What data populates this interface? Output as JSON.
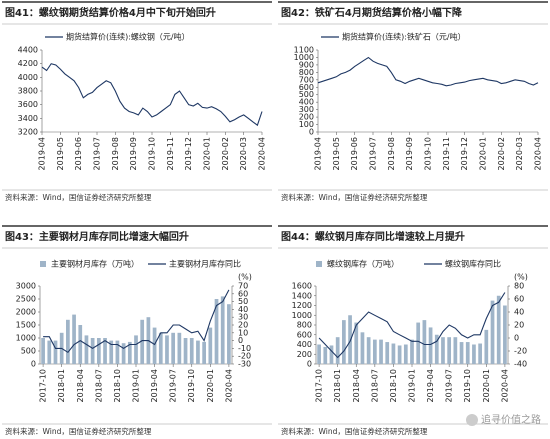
{
  "chart_data": [
    {
      "type": "line",
      "figure_label": "图41：",
      "title": "螺纹钢期货结算价格4月中下旬开始回升",
      "source": "资料来源：Wind，国信证券经济研究所整理",
      "categories": [
        "2019-04",
        null,
        null,
        null,
        "2019-05",
        null,
        null,
        null,
        "2019-06",
        null,
        null,
        null,
        "2019-07",
        null,
        null,
        null,
        "2019-08",
        null,
        null,
        null,
        "2019-09",
        null,
        null,
        null,
        "2019-10",
        null,
        null,
        null,
        "2019-11",
        null,
        null,
        null,
        "2019-12",
        null,
        null,
        null,
        "2020-01",
        null,
        null,
        null,
        "2020-02",
        null,
        null,
        null,
        "2020-03",
        null,
        null,
        null,
        "2020-04"
      ],
      "series": [
        {
          "name": "期货结算价(连续):螺纹钢（元/吨）",
          "color": "#1f3864",
          "values": [
            4150,
            4100,
            4200,
            4180,
            4120,
            4050,
            4000,
            3950,
            3850,
            3700,
            3750,
            3780,
            3850,
            3900,
            3950,
            3920,
            3800,
            3650,
            3550,
            3500,
            3480,
            3450,
            3550,
            3500,
            3420,
            3450,
            3500,
            3550,
            3600,
            3750,
            3800,
            3700,
            3600,
            3580,
            3620,
            3560,
            3550,
            3570,
            3540,
            3500,
            3430,
            3350,
            3380,
            3420,
            3450,
            3400,
            3350,
            3300,
            3500
          ]
        }
      ],
      "ylim": [
        3200,
        4400
      ],
      "yticks": [
        3200,
        3400,
        3600,
        3800,
        4000,
        4200,
        4400
      ]
    },
    {
      "type": "line",
      "figure_label": "图42：",
      "title": "铁矿石4月期货结算价格小幅下降",
      "source": "资料来源：Wind，国信证券经济研究所整理",
      "categories": [
        "2019-04",
        null,
        null,
        null,
        "2019-05",
        null,
        null,
        null,
        "2019-06",
        null,
        null,
        null,
        "2019-07",
        null,
        null,
        null,
        "2019-08",
        null,
        null,
        null,
        "2019-09",
        null,
        null,
        null,
        "2019-10",
        null,
        null,
        null,
        "2019-11",
        null,
        null,
        null,
        "2019-12",
        null,
        null,
        null,
        "2020-01",
        null,
        null,
        null,
        "2020-02",
        null,
        null,
        null,
        "2020-03",
        null,
        null,
        null,
        "2020-04"
      ],
      "series": [
        {
          "name": "期货结算价(连续):铁矿石（元/吨）",
          "color": "#1f3864",
          "values": [
            660,
            680,
            700,
            720,
            740,
            780,
            800,
            830,
            880,
            920,
            960,
            1000,
            950,
            920,
            900,
            880,
            800,
            700,
            680,
            650,
            680,
            700,
            720,
            700,
            680,
            660,
            650,
            640,
            620,
            630,
            650,
            660,
            670,
            690,
            700,
            710,
            720,
            700,
            690,
            680,
            650,
            660,
            680,
            700,
            690,
            680,
            650,
            630,
            660
          ]
        }
      ],
      "ylim": [
        0,
        1100
      ],
      "yticks": [
        0,
        100,
        200,
        300,
        400,
        500,
        600,
        700,
        800,
        900,
        1000,
        1100
      ]
    },
    {
      "type": "bar_line",
      "figure_label": "图43：",
      "title": "主要钢材月库存同比增速大幅回升",
      "source": "资料来源：Wind，国信证券经济研究所整理",
      "categories": [
        "2017-10",
        null,
        null,
        "2018-01",
        null,
        null,
        "2018-04",
        null,
        null,
        "2018-07",
        null,
        null,
        "2018-10",
        null,
        null,
        "2019-01",
        null,
        null,
        "2019-04",
        null,
        null,
        "2019-07",
        null,
        null,
        "2019-10",
        null,
        null,
        "2020-01",
        null,
        null,
        "2020-04"
      ],
      "series": [
        {
          "name": "主要钢材月库存（万吨）",
          "color": "#9fb4c8",
          "type": "bar",
          "values": [
            1000,
            900,
            900,
            1200,
            1700,
            1900,
            1500,
            1100,
            1000,
            1000,
            1000,
            900,
            900,
            800,
            850,
            1100,
            1700,
            1800,
            1400,
            1200,
            1100,
            1200,
            1200,
            1000,
            1000,
            900,
            850,
            1400,
            2500,
            2600,
            2300
          ]
        },
        {
          "name": "主要钢材月库存同比",
          "color": "#1f3864",
          "type": "line",
          "axis": "y2",
          "values": [
            5,
            5,
            -10,
            -10,
            -15,
            -5,
            0,
            -5,
            -10,
            -5,
            0,
            -5,
            -5,
            -10,
            -5,
            -5,
            0,
            0,
            -5,
            10,
            10,
            20,
            20,
            15,
            10,
            12,
            0,
            25,
            45,
            50,
            65
          ]
        }
      ],
      "ylim": [
        0,
        3000
      ],
      "yticks": [
        0,
        500,
        1000,
        1500,
        2000,
        2500,
        3000
      ],
      "y2lim": [
        -30,
        70
      ],
      "y2ticks": [
        -30,
        -20,
        -10,
        0,
        10,
        20,
        30,
        40,
        50,
        60,
        70
      ],
      "y2_label": "(%)"
    },
    {
      "type": "bar_line",
      "figure_label": "图44：",
      "title": "螺纹钢月库存同比增速较上月提升",
      "source": "资料来源：Wind，国信证券经济研究所整理",
      "watermark": "追寻价值之路",
      "categories": [
        "2017-10",
        null,
        null,
        "2018-01",
        null,
        null,
        "2018-04",
        null,
        null,
        "2018-07",
        null,
        null,
        "2018-10",
        null,
        null,
        "2019-01",
        null,
        null,
        "2019-04",
        null,
        null,
        "2019-07",
        null,
        null,
        "2019-10",
        null,
        null,
        "2020-01",
        null,
        null,
        "2020-04"
      ],
      "series": [
        {
          "name": "螺纹钢库存（万吨）",
          "color": "#9fb4c8",
          "type": "bar",
          "values": [
            400,
            350,
            380,
            550,
            900,
            1000,
            850,
            650,
            550,
            500,
            500,
            450,
            420,
            380,
            400,
            500,
            850,
            900,
            750,
            600,
            550,
            550,
            550,
            450,
            450,
            400,
            420,
            700,
            1300,
            1400,
            1200
          ]
        },
        {
          "name": "螺纹钢库存同比",
          "color": "#1f3864",
          "type": "line",
          "axis": "y2",
          "values": [
            0,
            -10,
            -20,
            -30,
            -20,
            -5,
            20,
            30,
            40,
            35,
            30,
            25,
            10,
            5,
            0,
            -5,
            -5,
            -10,
            -10,
            -5,
            10,
            20,
            15,
            5,
            0,
            5,
            5,
            30,
            50,
            55,
            70
          ]
        }
      ],
      "ylim": [
        0,
        1600
      ],
      "yticks": [
        0,
        200,
        400,
        600,
        800,
        1000,
        1200,
        1400,
        1600
      ],
      "y2lim": [
        -40,
        80
      ],
      "y2ticks": [
        -40,
        -20,
        0,
        20,
        40,
        60,
        80
      ],
      "y2_label": "(%)"
    }
  ]
}
